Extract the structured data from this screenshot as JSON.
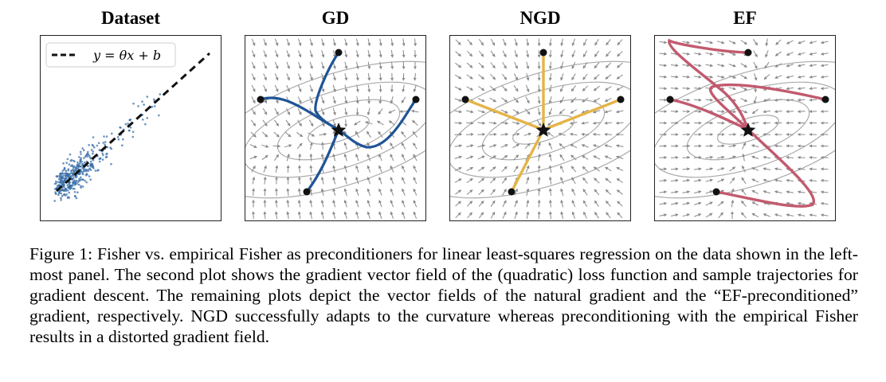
{
  "figure": {
    "panels": [
      {
        "id": "dataset",
        "title": "Dataset"
      },
      {
        "id": "gd",
        "title": "GD"
      },
      {
        "id": "ngd",
        "title": "NGD"
      },
      {
        "id": "ef",
        "title": "EF"
      }
    ],
    "legend": {
      "label": "y = θx + b"
    },
    "caption": "Figure 1: Fisher vs. empirical Fisher as preconditioners for linear least-squares regression on the data shown in the left-most panel. The second plot shows the gradient vector field of the (quadratic) loss function and sample trajectories for gradient descent. The remaining plots depict the vector fields of the natural gradient and the “EF-preconditioned” gradient, respectively. NGD successfully adapts to the curvature whereas preconditioning with the empirical Fisher results in a distorted gradient field."
  },
  "colors": {
    "scatter": "#3a6fa8",
    "gd_trajectory": "#1f5496",
    "ngd_trajectory": "#e5b447",
    "ef_trajectory": "#c25a6e",
    "field_arrow": "#8a8a8a",
    "contour": "#aaaaaa"
  },
  "icons": {
    "optimum": "star-icon",
    "start": "hexagon-marker"
  }
}
